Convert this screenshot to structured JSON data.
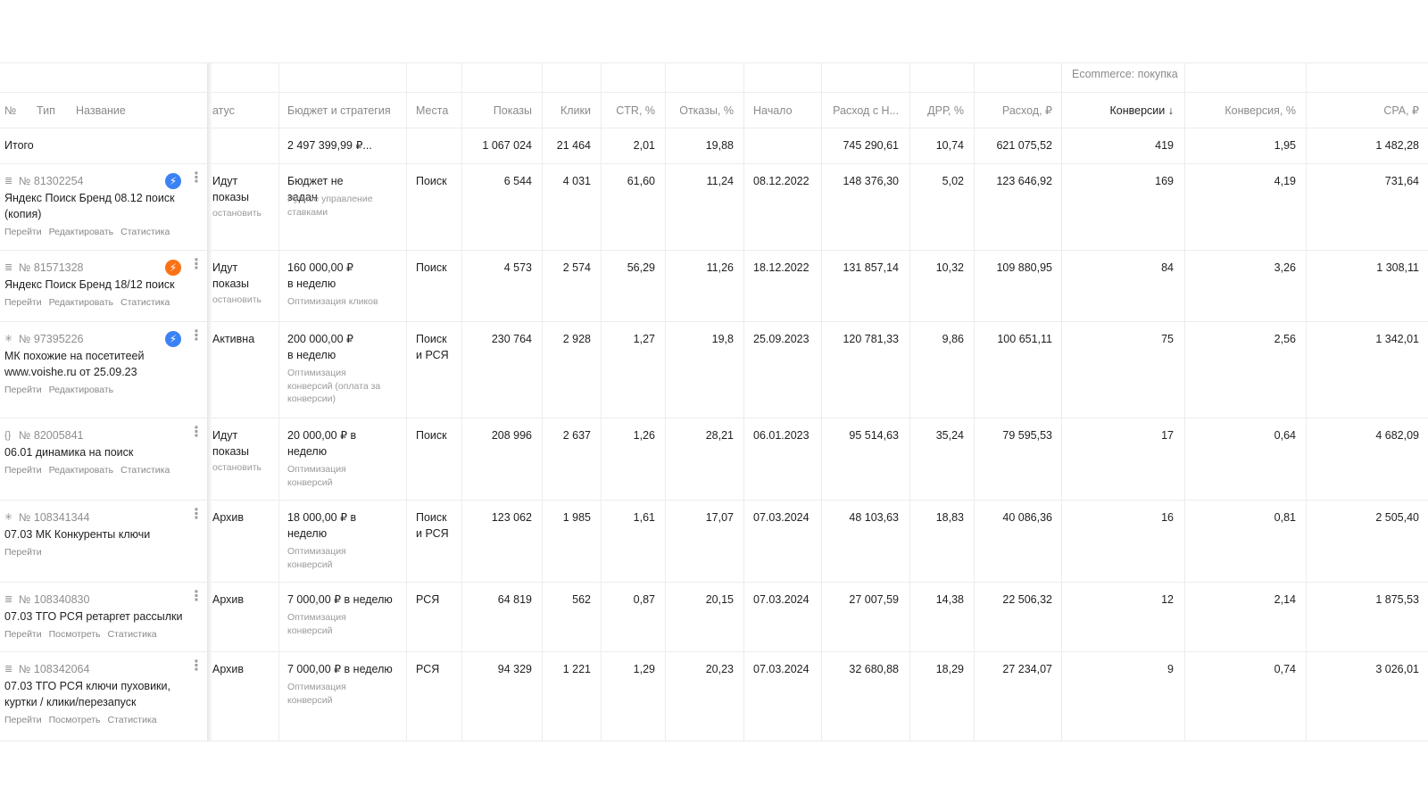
{
  "colors": {
    "blue_badge": "#3b82f6",
    "orange_badge": "#f97316",
    "grid": "#ececec",
    "separator": "#9aa3b5"
  },
  "group_header": "Ecommerce: покупка",
  "headers": {
    "num": "№",
    "type": "Тип",
    "name": "Название",
    "status": "атус",
    "budget": "Бюджет и стратегия",
    "places": "Места",
    "shows": "Показы",
    "clicks": "Клики",
    "ctr": "CTR, %",
    "bounce": "Отказы, %",
    "start": "Начало",
    "spend_vat": "Расход с Н...",
    "drr": "ДРР, %",
    "spend": "Расход, ₽",
    "conv": "Конверсии ↓",
    "conv_rate": "Конверсия, %",
    "cpa": "CPA, ₽"
  },
  "total": {
    "label": "Итого",
    "budget": "2 497 399,99 ₽...",
    "shows": "1 067 024",
    "clicks": "21 464",
    "ctr": "2,01",
    "bounce": "19,88",
    "spend_vat": "745 290,61",
    "drr": "10,74",
    "spend": "621 075,52",
    "conv": "419",
    "conv_rate": "1,95",
    "cpa": "1 482,28"
  },
  "rows": [
    {
      "type_icon": "text-ad-icon",
      "type_glyph": "≣",
      "id": "№ 81302254",
      "badge": "blue",
      "name": "Яндекс Поиск Бренд 08.12 поиск (копия)",
      "links": [
        "Перейти",
        "Редактировать",
        "Статистика"
      ],
      "status": "Идут показы",
      "status_sub": "остановить",
      "budget": "Бюджет не задан",
      "budget_sub": "Ручное управление ставками",
      "places": "Поиск",
      "shows": "6 544",
      "clicks": "4 031",
      "ctr": "61,60",
      "bounce": "11,24",
      "start": "08.12.2022",
      "spend_vat": "148 376,30",
      "drr": "5,02",
      "spend": "123 646,92",
      "conv": "169",
      "conv_rate": "4,19",
      "cpa": "731,64"
    },
    {
      "type_icon": "text-ad-icon",
      "type_glyph": "≣",
      "id": "№ 81571328",
      "badge": "orange",
      "name": "Яндекс Поиск Бренд 18/12 поиск",
      "links": [
        "Перейти",
        "Редактировать",
        "Статистика"
      ],
      "status": "Идут показы",
      "status_sub": "остановить",
      "budget": "160 000,00 ₽ в неделю",
      "budget_sub": "Оптимизация кликов",
      "places": "Поиск",
      "shows": "4 573",
      "clicks": "2 574",
      "ctr": "56,29",
      "bounce": "11,26",
      "start": "18.12.2022",
      "spend_vat": "131 857,14",
      "drr": "10,32",
      "spend": "109 880,95",
      "conv": "84",
      "conv_rate": "3,26",
      "cpa": "1 308,11"
    },
    {
      "type_icon": "master-campaign-icon",
      "type_glyph": "✳",
      "id": "№ 97395226",
      "badge": "blue",
      "name": "МК похожие на посетитеей www.voishe.ru от 25.09.23",
      "links": [
        "Перейти",
        "Редактировать"
      ],
      "status": "Активна",
      "status_sub": "",
      "budget": "200 000,00 ₽ в неделю",
      "budget_sub": "Оптимизация конверсий (оплата за конверсии)",
      "places": "Поиск и РСЯ",
      "shows": "230 764",
      "clicks": "2 928",
      "ctr": "1,27",
      "bounce": "19,8",
      "start": "25.09.2023",
      "spend_vat": "120 781,33",
      "drr": "9,86",
      "spend": "100 651,11",
      "conv": "75",
      "conv_rate": "2,56",
      "cpa": "1 342,01"
    },
    {
      "type_icon": "dynamic-ad-icon",
      "type_glyph": "{}",
      "id": "№ 82005841",
      "badge": "",
      "name": "06.01 динамика на поиск",
      "links": [
        "Перейти",
        "Редактировать",
        "Статистика"
      ],
      "status": "Идут показы",
      "status_sub": "остановить",
      "budget": "20 000,00 ₽ в неделю",
      "budget_sub": "Оптимизация конверсий",
      "places": "Поиск",
      "shows": "208 996",
      "clicks": "2 637",
      "ctr": "1,26",
      "bounce": "28,21",
      "start": "06.01.2023",
      "spend_vat": "95 514,63",
      "drr": "35,24",
      "spend": "79 595,53",
      "conv": "17",
      "conv_rate": "0,64",
      "cpa": "4 682,09"
    },
    {
      "type_icon": "master-campaign-icon",
      "type_glyph": "✳",
      "id": "№ 108341344",
      "badge": "",
      "name": "07.03 МК Конкуренты ключи",
      "links": [
        "Перейти"
      ],
      "status": "Архив",
      "status_sub": "",
      "budget": "18 000,00 ₽ в неделю",
      "budget_sub": "Оптимизация конверсий",
      "places": "Поиск и РСЯ",
      "shows": "123 062",
      "clicks": "1 985",
      "ctr": "1,61",
      "bounce": "17,07",
      "start": "07.03.2024",
      "spend_vat": "48 103,63",
      "drr": "18,83",
      "spend": "40 086,36",
      "conv": "16",
      "conv_rate": "0,81",
      "cpa": "2 505,40"
    },
    {
      "type_icon": "text-ad-icon",
      "type_glyph": "≣",
      "id": "№ 108340830",
      "badge": "",
      "name": "07.03 ТГО РСЯ ретаргет рассылки",
      "links": [
        "Перейти",
        "Посмотреть",
        "Статистика"
      ],
      "status": "Архив",
      "status_sub": "",
      "budget": "7 000,00 ₽ в неделю",
      "budget_sub": "Оптимизация конверсий",
      "places": "РСЯ",
      "shows": "64 819",
      "clicks": "562",
      "ctr": "0,87",
      "bounce": "20,15",
      "start": "07.03.2024",
      "spend_vat": "27 007,59",
      "drr": "14,38",
      "spend": "22 506,32",
      "conv": "12",
      "conv_rate": "2,14",
      "cpa": "1 875,53"
    },
    {
      "type_icon": "text-ad-icon",
      "type_glyph": "≣",
      "id": "№ 108342064",
      "badge": "",
      "name": "07.03 ТГО РСЯ ключи пуховики, куртки / клики/перезапуск",
      "links": [
        "Перейти",
        "Посмотреть",
        "Статистика"
      ],
      "status": "Архив",
      "status_sub": "",
      "budget": "7 000,00 ₽ в неделю",
      "budget_sub": "Оптимизация конверсий",
      "places": "РСЯ",
      "shows": "94 329",
      "clicks": "1 221",
      "ctr": "1,29",
      "bounce": "20,23",
      "start": "07.03.2024",
      "spend_vat": "32 680,88",
      "drr": "18,29",
      "spend": "27 234,07",
      "conv": "9",
      "conv_rate": "0,74",
      "cpa": "3 026,01"
    }
  ]
}
